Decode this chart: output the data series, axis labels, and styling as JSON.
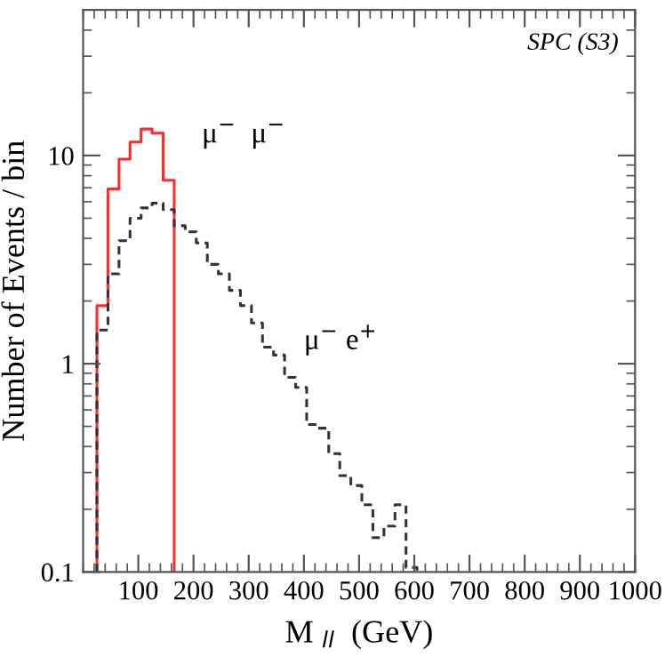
{
  "chart_data": {
    "type": "histogram",
    "xlabel": "M $_{ll}$  (GeV)",
    "ylabel": "Number of Events / bin",
    "bins": [
      25,
      45,
      65,
      85,
      105,
      125,
      145,
      165,
      185,
      205,
      225,
      245,
      265,
      285,
      305,
      325,
      345,
      365,
      385,
      405,
      425,
      445,
      465,
      485,
      505,
      525,
      545,
      565,
      585,
      605
    ],
    "series": [
      {
        "color": "#ff2a2a",
        "line_style": "solid",
        "bins": [
          25,
          45,
          65,
          85,
          105,
          125,
          145,
          165
        ],
        "values": [
          1.9,
          6.9,
          9.6,
          11.6,
          13.4,
          12.8,
          7.6
        ]
      },
      {
        "color": "#333333",
        "line_style": "dashed",
        "values": [
          1.45,
          2.7,
          3.9,
          5.0,
          5.6,
          5.9,
          5.5,
          4.6,
          4.3,
          3.8,
          3.0,
          2.7,
          2.25,
          1.9,
          1.57,
          1.2,
          1.1,
          0.86,
          0.77,
          0.51,
          0.49,
          0.37,
          0.29,
          0.26,
          0.21,
          0.146,
          0.166,
          0.21,
          0.105
        ]
      }
    ],
    "annotations": [
      "μ$^{−}$  μ$^{−}$",
      "μ$^{−}$ e$^{+}$",
      "SPC (S3)"
    ],
    "log": "y",
    "xlim": [
      0,
      1000
    ],
    "ylim": [
      0.1,
      50
    ],
    "xticks": [
      100,
      200,
      300,
      400,
      500,
      600,
      700,
      800,
      900,
      1000
    ],
    "yticks": [
      0.1,
      1,
      10
    ],
    "grid": false,
    "legend": false
  }
}
